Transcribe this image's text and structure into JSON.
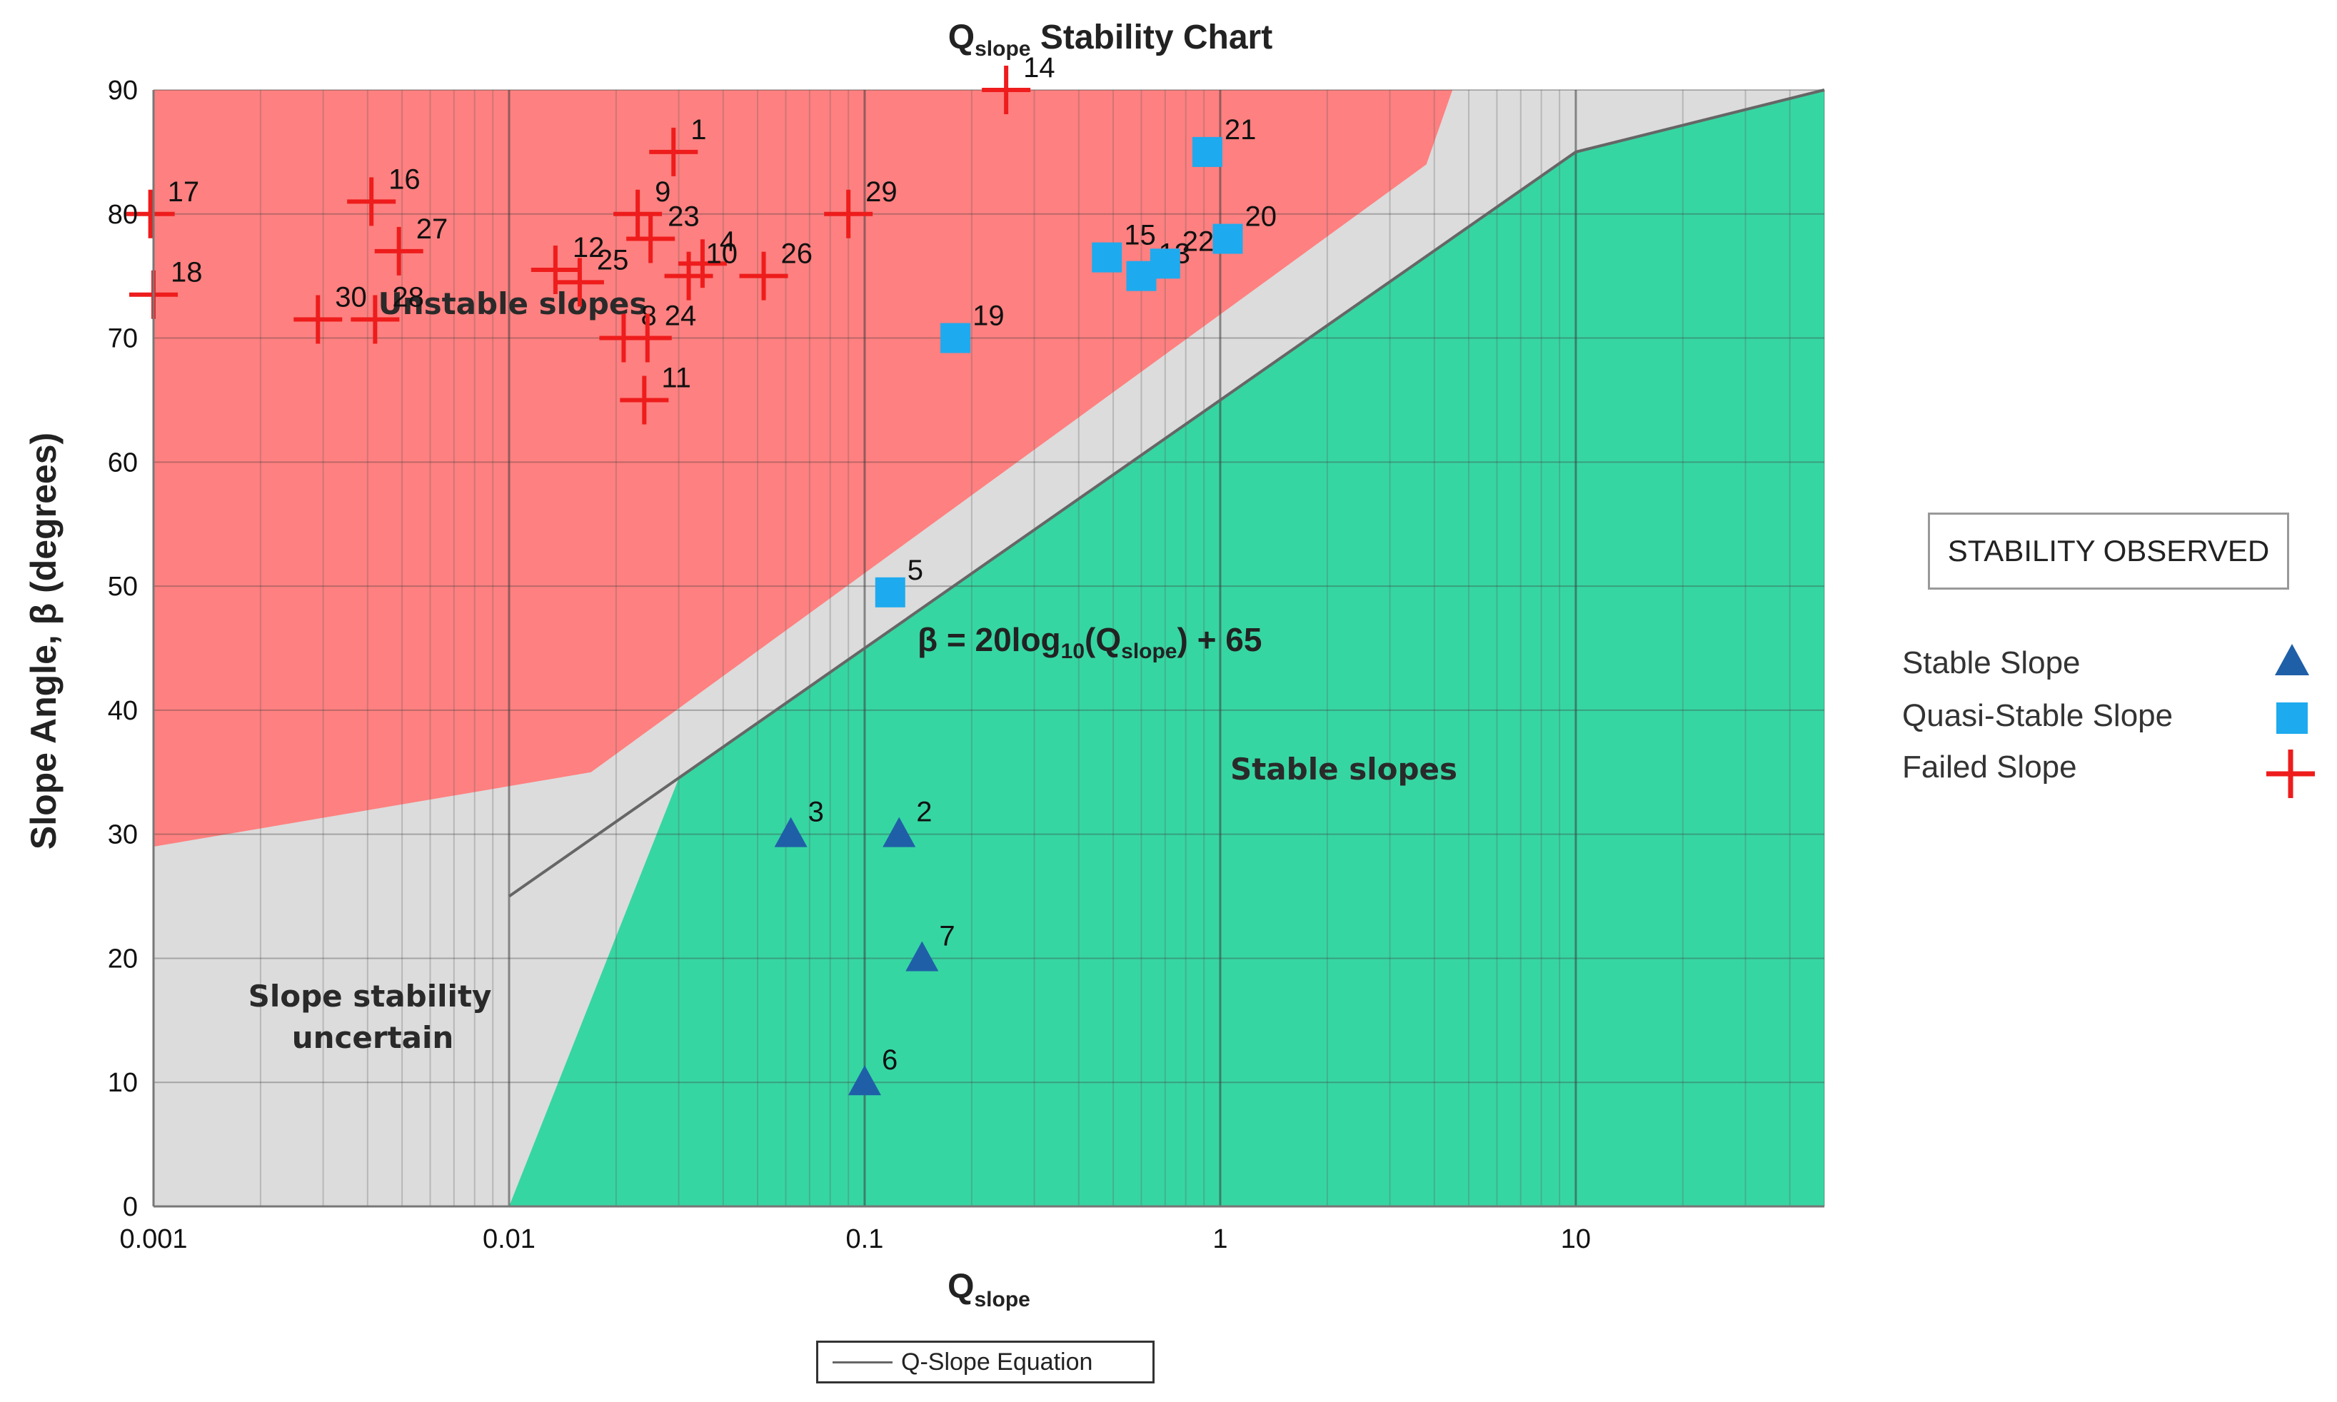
{
  "chart_data": {
    "type": "scatter",
    "title": "Qslope Stability Chart",
    "title_main": "Q",
    "title_sub": "slope",
    "title_rest": " Stability Chart",
    "xlabel_main": "Q",
    "xlabel_sub": "slope",
    "ylabel": "Slope Angle, β (degrees)",
    "x_scale": "log",
    "xlim": [
      0.001,
      50
    ],
    "ylim": [
      0,
      90
    ],
    "x_ticks": [
      {
        "value": 0.001,
        "label": "0.001"
      },
      {
        "value": 0.01,
        "label": "0.01"
      },
      {
        "value": 0.1,
        "label": "0.1"
      },
      {
        "value": 1,
        "label": "1"
      },
      {
        "value": 10,
        "label": "10"
      }
    ],
    "y_ticks": [
      {
        "value": 0,
        "label": "0"
      },
      {
        "value": 10,
        "label": "10"
      },
      {
        "value": 20,
        "label": "20"
      },
      {
        "value": 30,
        "label": "30"
      },
      {
        "value": 40,
        "label": "40"
      },
      {
        "value": 50,
        "label": "50"
      },
      {
        "value": 60,
        "label": "60"
      },
      {
        "value": 70,
        "label": "70"
      },
      {
        "value": 80,
        "label": "80"
      },
      {
        "value": 90,
        "label": "90"
      }
    ],
    "grid": true,
    "regions": [
      {
        "name": "Unstable slopes",
        "color": "#ff8080"
      },
      {
        "name": "Slope stability uncertain",
        "color": "#dcdcdc"
      },
      {
        "name": "Stable slopes",
        "color": "#36d6a2"
      }
    ],
    "region_labels": {
      "unstable": "Unstable slopes",
      "uncertain_line1": "Slope stability",
      "uncertain_line2": "uncertain",
      "stable": "Stable slopes"
    },
    "equation": {
      "text_pre": "β = 20log",
      "text_sub1": "10",
      "text_mid": "(Q",
      "text_sub2": "slope",
      "text_post": ") + 65",
      "color": "#1a9e70",
      "line": [
        [
          0.01,
          25
        ],
        [
          10,
          85
        ],
        [
          50,
          90
        ]
      ]
    },
    "series": [
      {
        "name": "Stable Slope",
        "marker": "triangle",
        "color": "#1f5fa8",
        "points": [
          {
            "id": "2",
            "x": 0.125,
            "y": 30
          },
          {
            "id": "3",
            "x": 0.062,
            "y": 30
          },
          {
            "id": "6",
            "x": 0.1,
            "y": 10
          },
          {
            "id": "7",
            "x": 0.145,
            "y": 20
          }
        ]
      },
      {
        "name": "Quasi-Stable Slope",
        "marker": "square",
        "color": "#1eaaee",
        "points": [
          {
            "id": "5",
            "x": 0.118,
            "y": 49.5
          },
          {
            "id": "13",
            "x": 0.6,
            "y": 75
          },
          {
            "id": "15",
            "x": 0.48,
            "y": 76.5
          },
          {
            "id": "19",
            "x": 0.18,
            "y": 70
          },
          {
            "id": "20",
            "x": 1.05,
            "y": 78
          },
          {
            "id": "21",
            "x": 0.92,
            "y": 85
          },
          {
            "id": "22",
            "x": 0.7,
            "y": 76
          }
        ]
      },
      {
        "name": "Failed Slope",
        "marker": "plus",
        "color": "#ee1c1c",
        "points": [
          {
            "id": "1",
            "x": 0.029,
            "y": 85
          },
          {
            "id": "4",
            "x": 0.035,
            "y": 76
          },
          {
            "id": "8",
            "x": 0.021,
            "y": 70
          },
          {
            "id": "9",
            "x": 0.023,
            "y": 80
          },
          {
            "id": "10",
            "x": 0.032,
            "y": 75
          },
          {
            "id": "11",
            "x": 0.024,
            "y": 65
          },
          {
            "id": "12",
            "x": 0.0135,
            "y": 75.5
          },
          {
            "id": "14",
            "x": 0.25,
            "y": 90
          },
          {
            "id": "16",
            "x": 0.0041,
            "y": 81
          },
          {
            "id": "17",
            "x": 0.00098,
            "y": 80
          },
          {
            "id": "18",
            "x": 0.001,
            "y": 73.5
          },
          {
            "id": "23",
            "x": 0.025,
            "y": 78
          },
          {
            "id": "24",
            "x": 0.0245,
            "y": 70
          },
          {
            "id": "25",
            "x": 0.0158,
            "y": 74.5
          },
          {
            "id": "26",
            "x": 0.052,
            "y": 75
          },
          {
            "id": "27",
            "x": 0.0049,
            "y": 77
          },
          {
            "id": "28",
            "x": 0.0042,
            "y": 71.5
          },
          {
            "id": "29",
            "x": 0.09,
            "y": 80
          },
          {
            "id": "30",
            "x": 0.0029,
            "y": 71.5
          }
        ]
      }
    ]
  },
  "legend": {
    "title": "STABILITY OBSERVED",
    "items": [
      {
        "label": "Stable Slope",
        "marker": "triangle",
        "color": "#1f5fa8"
      },
      {
        "label": "Quasi-Stable Slope",
        "marker": "square",
        "color": "#1eaaee"
      },
      {
        "label": "Failed Slope",
        "marker": "plus",
        "color": "#ee1c1c"
      }
    ]
  },
  "equation_legend": {
    "label": "Q-Slope Equation"
  }
}
